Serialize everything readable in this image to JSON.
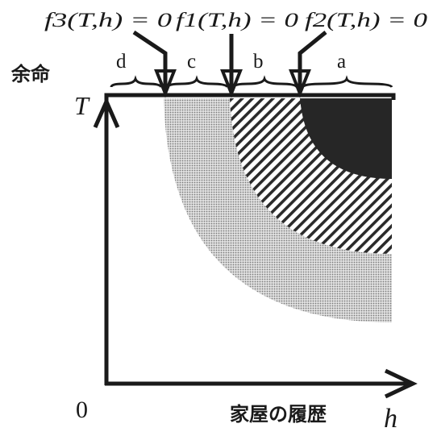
{
  "curve_labels": {
    "f3": "f3(T,h) = 0",
    "f1": "f1(T,h) = 0",
    "f2": "f2(T,h) = 0"
  },
  "region_labels": {
    "a": "a",
    "b": "b",
    "c": "c",
    "d": "d"
  },
  "axes": {
    "y_title": "余命",
    "y_symbol": "T",
    "origin": "0",
    "x_title": "家屋の履歴",
    "x_symbol": "h"
  },
  "colors": {
    "ink": "#1a1a1a",
    "region_a_fill": "#262626",
    "region_b_hatch": "#2a2a2a",
    "region_c_dots": "#7a7a7a"
  }
}
